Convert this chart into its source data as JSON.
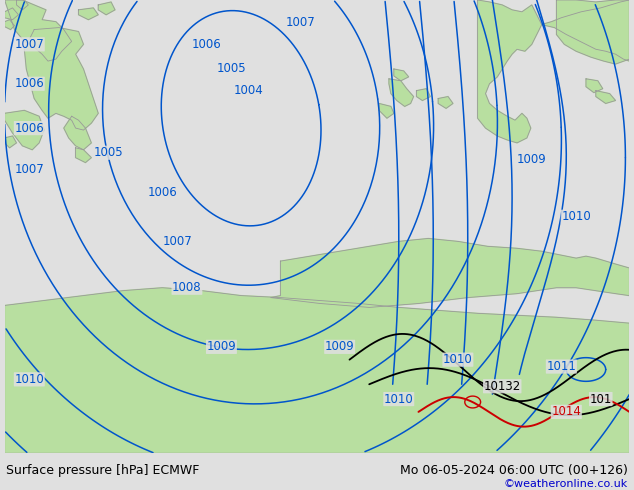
{
  "title_left": "Surface pressure [hPa] ECMWF",
  "title_right": "Mo 06-05-2024 06:00 UTC (00+126)",
  "credit": "©weatheronline.co.uk",
  "credit_color": "#0000cc",
  "sea_color": "#e0e0e0",
  "land_color": "#b8dfa0",
  "contour_blue": "#0055cc",
  "contour_black": "#000000",
  "contour_red": "#cc0000",
  "bottom_bg": "#ffffff",
  "bottom_text": "#000000",
  "figwidth": 6.34,
  "figheight": 4.9,
  "dpi": 100
}
